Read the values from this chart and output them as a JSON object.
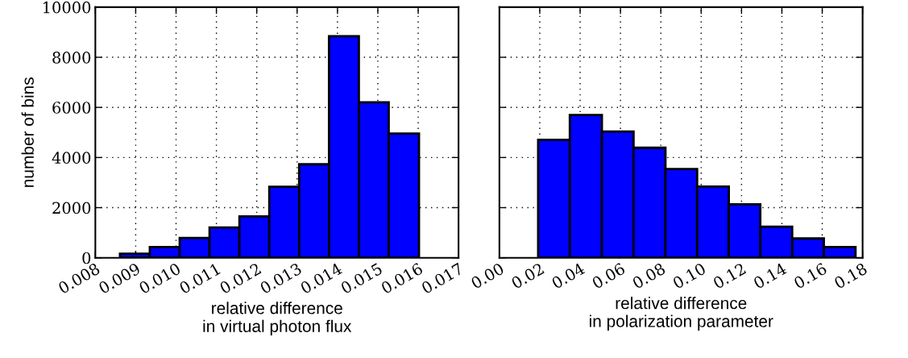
{
  "chart_data": [
    {
      "type": "histogram",
      "xlabel": "relative difference\nin virtual photon flux",
      "ylabel": "number of bins",
      "color": "#0000ff",
      "bins": [
        0.00861,
        0.00935,
        0.01009,
        0.01083,
        0.01157,
        0.01231,
        0.01305,
        0.01379,
        0.01453,
        0.01527,
        0.01602
      ],
      "values": [
        160,
        430,
        790,
        1210,
        1650,
        2830,
        3730,
        8840,
        6200,
        4960
      ],
      "xlim": [
        0.008,
        0.017
      ],
      "xticks": [
        {
          "value": 0.008,
          "label": "0.008"
        },
        {
          "value": 0.009,
          "label": "0.009"
        },
        {
          "value": 0.01,
          "label": "0.010"
        },
        {
          "value": 0.011,
          "label": "0.011"
        },
        {
          "value": 0.012,
          "label": "0.012"
        },
        {
          "value": 0.013,
          "label": "0.013"
        },
        {
          "value": 0.014,
          "label": "0.014"
        },
        {
          "value": 0.015,
          "label": "0.015"
        },
        {
          "value": 0.016,
          "label": "0.016"
        },
        {
          "value": 0.017,
          "label": "0.017"
        }
      ],
      "ylim": [
        0,
        10000
      ],
      "yticks": [
        0,
        2000,
        4000,
        6000,
        8000,
        10000
      ],
      "grid": true
    },
    {
      "type": "histogram",
      "xlabel": "relative difference\nin polarization parameter",
      "color": "#0000ff",
      "bins": [
        0.0192,
        0.0349,
        0.0508,
        0.0665,
        0.0823,
        0.098,
        0.1137,
        0.1293,
        0.1451,
        0.1608,
        0.1765
      ],
      "values": [
        4710,
        5700,
        5040,
        4390,
        3540,
        2840,
        2130,
        1240,
        770,
        430
      ],
      "xlim": [
        0.0,
        0.18
      ],
      "xticks": [
        {
          "value": 0.0,
          "label": "0.00"
        },
        {
          "value": 0.02,
          "label": "0.02"
        },
        {
          "value": 0.04,
          "label": "0.04"
        },
        {
          "value": 0.06,
          "label": "0.06"
        },
        {
          "value": 0.08,
          "label": "0.08"
        },
        {
          "value": 0.1,
          "label": "0.10"
        },
        {
          "value": 0.12,
          "label": "0.12"
        },
        {
          "value": 0.14,
          "label": "0.14"
        },
        {
          "value": 0.16,
          "label": "0.16"
        },
        {
          "value": 0.18,
          "label": "0.18"
        }
      ],
      "ylim": [
        0,
        10000
      ],
      "yticks": [
        0,
        2000,
        4000,
        6000,
        8000,
        10000
      ],
      "tick_labels": "x",
      "grid": true
    }
  ]
}
